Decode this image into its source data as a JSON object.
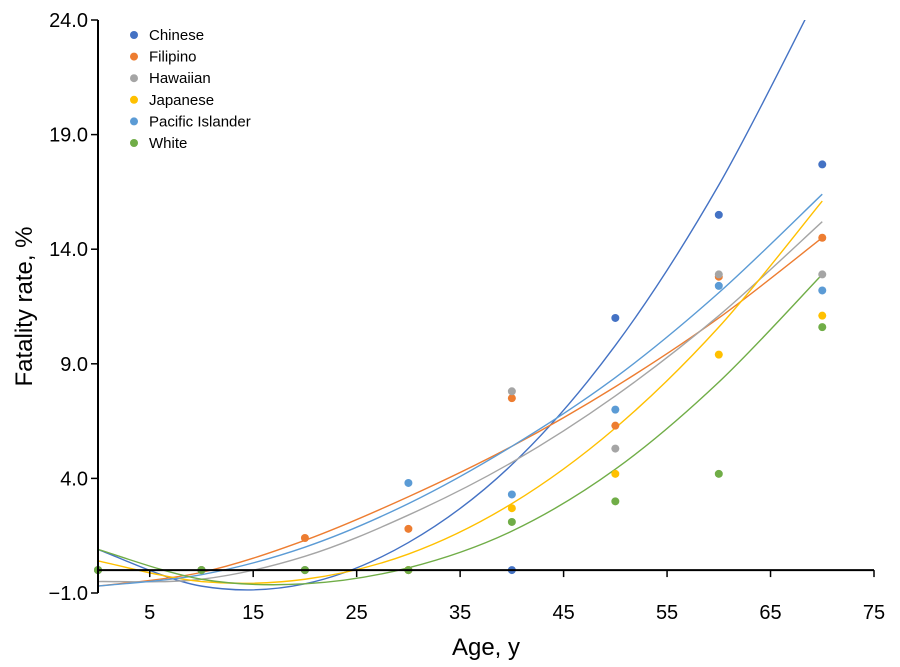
{
  "chart_data": {
    "type": "scatter",
    "xlabel": "Age, y",
    "ylabel": "Fatality rate, %",
    "xlim": [
      0,
      75
    ],
    "ylim": [
      -1.0,
      24.0
    ],
    "x_ticks": [
      "5",
      "15",
      "25",
      "35",
      "45",
      "55",
      "65",
      "75"
    ],
    "y_ticks": [
      "−1.0",
      "4.0",
      "9.0",
      "14.0",
      "19.0",
      "24.0"
    ],
    "x_tick_values": [
      5,
      15,
      25,
      35,
      45,
      55,
      65,
      75
    ],
    "y_tick_values": [
      -1,
      4,
      9,
      14,
      19,
      24
    ],
    "grid": false,
    "legend_position": "top-left",
    "trendline": "polynomial (order 2) per series",
    "x": [
      0,
      10,
      20,
      30,
      40,
      50,
      60,
      70
    ],
    "series": [
      {
        "name": "Chinese",
        "color": "#4472C4",
        "values": [
          0.0,
          0.0,
          0.0,
          0.0,
          0.0,
          11.0,
          15.5,
          17.7
        ],
        "trend": [
          0.9,
          -0.7,
          -0.6,
          1.2,
          4.6,
          9.8,
          16.8,
          25.5
        ]
      },
      {
        "name": "Filipino",
        "color": "#ED7D31",
        "values": [
          0.0,
          0.0,
          1.4,
          1.8,
          7.5,
          6.3,
          12.8,
          14.5
        ],
        "trend": [
          -0.7,
          -0.1,
          1.3,
          3.2,
          5.4,
          8.0,
          11.0,
          14.5
        ]
      },
      {
        "name": "Hawaiian",
        "color": "#A5A5A5",
        "values": [
          0.0,
          0.0,
          0.0,
          0.0,
          7.8,
          5.3,
          12.9,
          12.9
        ],
        "trend": [
          -0.5,
          -0.4,
          0.6,
          2.4,
          4.7,
          7.6,
          11.1,
          15.2
        ]
      },
      {
        "name": "Japanese",
        "color": "#FFC000",
        "values": [
          0.0,
          0.0,
          0.0,
          0.0,
          2.7,
          4.2,
          9.4,
          11.1
        ],
        "trend": [
          0.4,
          -0.5,
          -0.4,
          0.7,
          2.9,
          6.2,
          10.6,
          16.1
        ]
      },
      {
        "name": "Pacific Islander",
        "color": "#5B9BD5",
        "values": [
          0.0,
          0.0,
          0.0,
          3.8,
          3.3,
          7.0,
          12.4,
          12.2
        ],
        "trend": [
          -0.7,
          -0.2,
          1.0,
          2.9,
          5.4,
          8.4,
          12.1,
          16.4
        ]
      },
      {
        "name": "White",
        "color": "#70AD47",
        "values": [
          0.0,
          0.0,
          0.0,
          0.0,
          2.1,
          3.0,
          4.2,
          10.6
        ],
        "trend": [
          0.9,
          -0.4,
          -0.6,
          0.1,
          1.7,
          4.4,
          8.2,
          12.9
        ]
      }
    ]
  }
}
